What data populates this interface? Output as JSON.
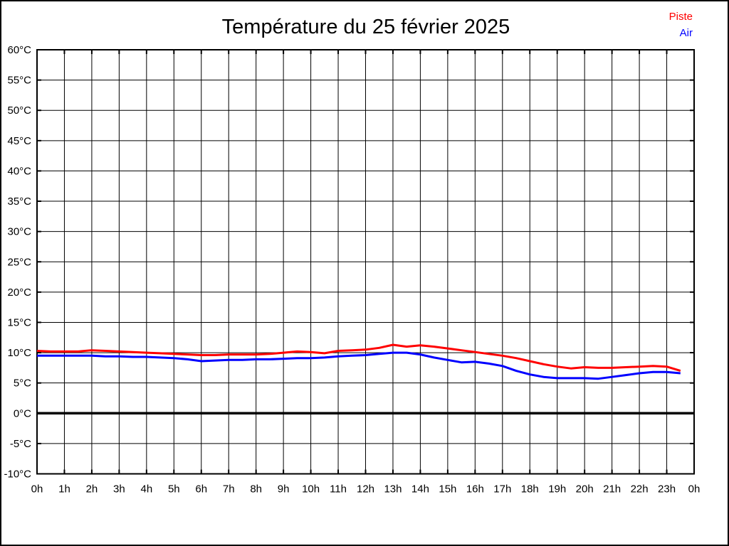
{
  "page": {
    "background": "#ffffff",
    "frame_color": "#000000"
  },
  "chart_data": {
    "type": "line",
    "title": "Température du 25 février 2025",
    "xlabel": "",
    "ylabel": "",
    "xlim": [
      0,
      24
    ],
    "ylim": [
      -10,
      60
    ],
    "grid": true,
    "grid_color": "#000000",
    "zero_line": true,
    "legend_position": "top-right",
    "x_tick_values": [
      0,
      1,
      2,
      3,
      4,
      5,
      6,
      7,
      8,
      9,
      10,
      11,
      12,
      13,
      14,
      15,
      16,
      17,
      18,
      19,
      20,
      21,
      22,
      23,
      24
    ],
    "x_tick_labels": [
      "0h",
      "1h",
      "2h",
      "3h",
      "4h",
      "5h",
      "6h",
      "7h",
      "8h",
      "9h",
      "10h",
      "11h",
      "12h",
      "13h",
      "14h",
      "15h",
      "16h",
      "17h",
      "18h",
      "19h",
      "20h",
      "21h",
      "22h",
      "23h",
      "0h"
    ],
    "y_tick_values": [
      60,
      55,
      50,
      45,
      40,
      35,
      30,
      25,
      20,
      15,
      10,
      5,
      0,
      -5,
      -10
    ],
    "y_tick_labels": [
      "60°C",
      "55°C",
      "50°C",
      "45°C",
      "40°C",
      "35°C",
      "30°C",
      "25°C",
      "20°C",
      "15°C",
      "10°C",
      "5°C",
      "0°C",
      "-5°C",
      "-10°C"
    ],
    "series": [
      {
        "name": "Piste",
        "color": "#ff0000",
        "x": [
          0,
          0.5,
          1,
          1.5,
          2,
          2.5,
          3,
          3.5,
          4,
          4.5,
          5,
          5.5,
          6,
          6.5,
          7,
          7.5,
          8,
          8.5,
          9,
          9.5,
          10,
          10.5,
          11,
          11.5,
          12,
          12.5,
          13,
          13.5,
          14,
          14.5,
          15,
          15.5,
          16,
          16.5,
          17,
          17.5,
          18,
          18.5,
          19,
          19.5,
          20,
          20.5,
          21,
          21.5,
          22,
          22.5,
          23,
          23.5
        ],
        "values": [
          10.3,
          10.2,
          10.2,
          10.2,
          10.4,
          10.3,
          10.2,
          10.1,
          10.0,
          9.9,
          9.8,
          9.7,
          9.6,
          9.6,
          9.7,
          9.7,
          9.7,
          9.8,
          10.0,
          10.2,
          10.1,
          9.9,
          10.3,
          10.4,
          10.5,
          10.8,
          11.3,
          11.0,
          11.2,
          11.0,
          10.7,
          10.4,
          10.1,
          9.8,
          9.5,
          9.1,
          8.6,
          8.1,
          7.7,
          7.4,
          7.6,
          7.5,
          7.5,
          7.6,
          7.7,
          7.8,
          7.7,
          7.0
        ]
      },
      {
        "name": "Air",
        "color": "#0000ff",
        "x": [
          0,
          0.5,
          1,
          1.5,
          2,
          2.5,
          3,
          3.5,
          4,
          4.5,
          5,
          5.5,
          6,
          6.5,
          7,
          7.5,
          8,
          8.5,
          9,
          9.5,
          10,
          10.5,
          11,
          11.5,
          12,
          12.5,
          13,
          13.5,
          14,
          14.5,
          15,
          15.5,
          16,
          16.5,
          17,
          17.5,
          18,
          18.5,
          19,
          19.5,
          20,
          20.5,
          21,
          21.5,
          22,
          22.5,
          23,
          23.5
        ],
        "values": [
          9.5,
          9.5,
          9.5,
          9.5,
          9.5,
          9.4,
          9.4,
          9.3,
          9.3,
          9.2,
          9.1,
          8.9,
          8.6,
          8.7,
          8.8,
          8.8,
          8.9,
          8.9,
          9.0,
          9.1,
          9.1,
          9.2,
          9.4,
          9.5,
          9.6,
          9.8,
          10.0,
          10.0,
          9.7,
          9.2,
          8.8,
          8.4,
          8.5,
          8.2,
          7.8,
          7.0,
          6.4,
          6.0,
          5.8,
          5.8,
          5.8,
          5.7,
          6.0,
          6.3,
          6.6,
          6.8,
          6.8,
          6.6
        ]
      }
    ]
  }
}
